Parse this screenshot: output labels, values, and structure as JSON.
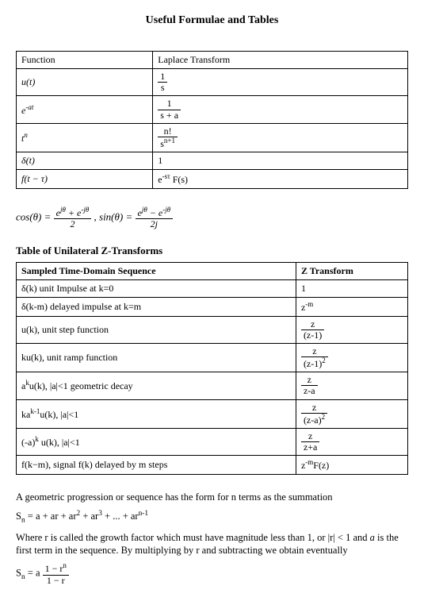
{
  "title": "Useful Formulae and Tables",
  "table1": {
    "headers": {
      "left": "Function",
      "right": "Laplace Transform"
    },
    "rows": [
      {
        "func": "u(t)",
        "xform_frac": {
          "num": "1",
          "den": "s"
        }
      },
      {
        "func_html": "e<sup>-at</sup>",
        "xform_frac": {
          "num": "1",
          "den": "s + a"
        }
      },
      {
        "func_html": "t<sup>n</sup>",
        "xform_frac": {
          "num": "n!",
          "den_html": "s<sup>n+1</sup>"
        }
      },
      {
        "func": "δ(t)",
        "xform_text": "1"
      },
      {
        "func_html": "f(t − τ)",
        "xform_html": "e<sup>-sτ</sup> F(s)"
      }
    ]
  },
  "euler": {
    "text_html": "cos(θ) = <span class=\"frac\"><span class=\"num\">e<sup>jθ</sup> + e<sup>-jθ</sup></span><span class=\"den\">2</span></span> , sin(θ) = <span class=\"frac\"><span class=\"num\">e<sup>jθ</sup> − e<sup>-jθ</sup></span><span class=\"den\">2j</span></span>"
  },
  "ztable": {
    "heading": "Table of Unilateral Z-Transforms",
    "headers": {
      "left": "Sampled Time-Domain Sequence",
      "right": "Z Transform"
    },
    "rows": [
      {
        "seq": "δ(k) unit Impulse at k=0",
        "z_text": "1"
      },
      {
        "seq": "δ(k-m) delayed impulse at k=m",
        "z_html": "z<sup>-m</sup>"
      },
      {
        "seq": "u(k), unit step function",
        "z_frac": {
          "num": "z",
          "den": "(z-1)"
        }
      },
      {
        "seq": "ku(k), unit ramp function",
        "z_frac": {
          "num": "z",
          "den_html": "(z-1)<sup>2</sup>"
        }
      },
      {
        "seq_html": "a<sup>k</sup>u(k), |a|&lt;1 geometric decay",
        "z_frac": {
          "num": "z",
          "den": "z-a"
        }
      },
      {
        "seq_html": "ka<sup>k-1</sup>u(k), |a|&lt;1",
        "z_frac": {
          "num": "z",
          "den_html": "(z-a)<sup>2</sup>"
        }
      },
      {
        "seq_html": "(-a)<sup>k</sup> u(k), |a|&lt;1",
        "z_frac": {
          "num": "z",
          "den": "z+a"
        }
      },
      {
        "seq": "f(k−m), signal f(k) delayed by m steps",
        "z_html": "z<sup>-m</sup>F(z)"
      }
    ]
  },
  "gp": {
    "p1": "A geometric progression or sequence has the form for n terms as the summation",
    "p2_html": "S<sub>n</sub> = a + ar + ar<sup>2</sup> + ar<sup>3</sup> + ... + ar<sup>n-1</sup>",
    "p3_html": "Where r is called the growth factor which must have magnitude less than 1, or |r| &lt; 1 and <i>a</i> is the first term in the sequence. By multiplying by r and subtracting we obtain eventually",
    "p4_html": "S<sub>n</sub> = a <span class=\"frac\" style=\"font-style:normal\"><span class=\"num\">1 − r<sup>n</sup></span><span class=\"den\">1 − r</span></span>"
  }
}
